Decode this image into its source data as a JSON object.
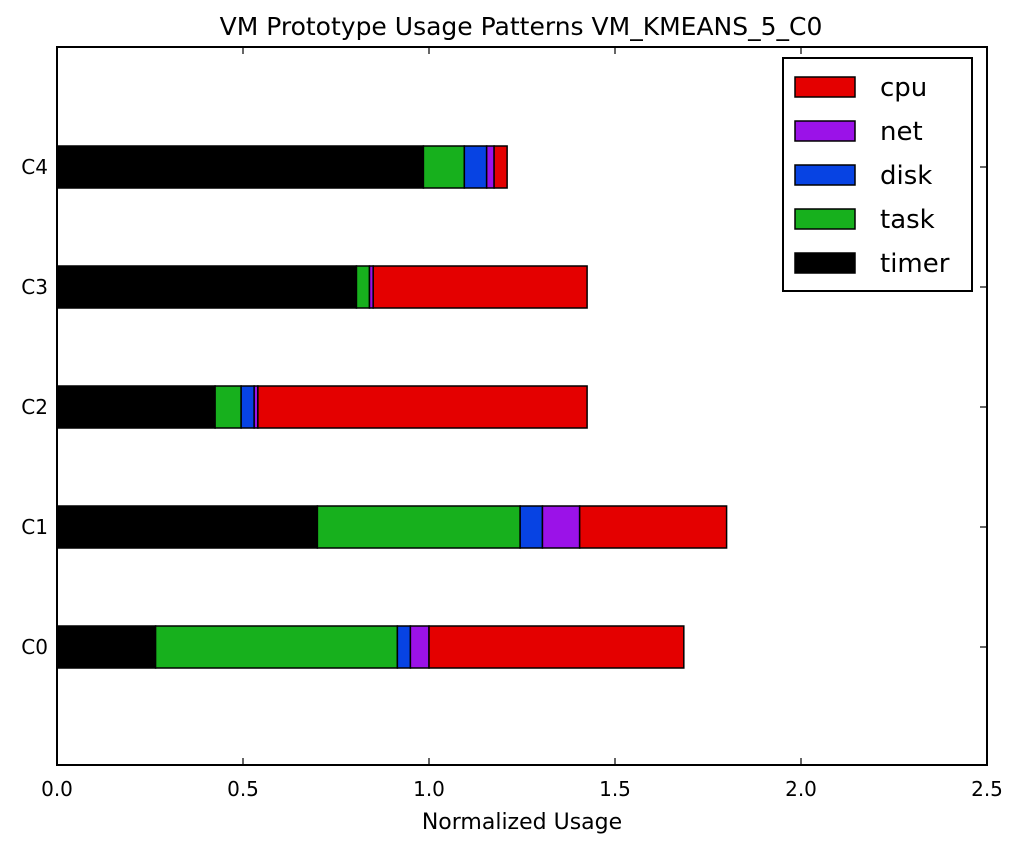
{
  "chart_data": {
    "type": "bar",
    "orientation": "horizontal",
    "stacked": true,
    "title": "VM Prototype Usage Patterns VM_KMEANS_5_C0",
    "xlabel": "Normalized Usage",
    "ylabel": "",
    "xlim": [
      0.0,
      2.5
    ],
    "xticks": [
      "0.0",
      "0.5",
      "1.0",
      "1.5",
      "2.0",
      "2.5"
    ],
    "categories": [
      "C0",
      "C1",
      "C2",
      "C3",
      "C4"
    ],
    "series": [
      {
        "name": "timer",
        "color": "#000000",
        "values": [
          0.265,
          0.7,
          0.425,
          0.805,
          0.985
        ]
      },
      {
        "name": "task",
        "color": "#17b01d",
        "values": [
          0.65,
          0.545,
          0.07,
          0.035,
          0.11
        ]
      },
      {
        "name": "disk",
        "color": "#0743e3",
        "values": [
          0.035,
          0.06,
          0.035,
          0.0,
          0.06
        ]
      },
      {
        "name": "net",
        "color": "#9b12e8",
        "values": [
          0.05,
          0.1,
          0.01,
          0.01,
          0.02
        ]
      },
      {
        "name": "cpu",
        "color": "#e40000",
        "values": [
          0.685,
          0.395,
          0.885,
          0.575,
          0.035
        ]
      }
    ],
    "legend": {
      "position": "top-right"
    },
    "grid": false
  }
}
